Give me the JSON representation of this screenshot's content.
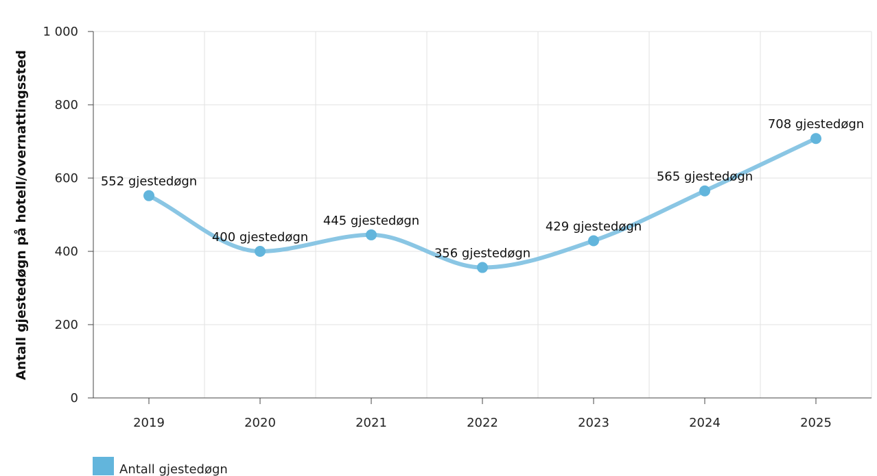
{
  "chart_data": {
    "type": "line",
    "title": "",
    "xlabel": "",
    "ylabel": "Antall gjestedøgn på hotell/overnattingssted",
    "categories": [
      "2019",
      "2020",
      "2021",
      "2022",
      "2023",
      "2024",
      "2025"
    ],
    "series": [
      {
        "name": "Antall gjestedøgn",
        "values": [
          552,
          400,
          445,
          356,
          429,
          565,
          708
        ],
        "labels": [
          "552 gjestedøgn",
          "400 gjestedøgn",
          "445 gjestedøgn",
          "356 gjestedøgn",
          "429 gjestedøgn",
          "565 gjestedøgn",
          "708 gjestedøgn"
        ],
        "color": "#62b5dc",
        "line_color": "#8ac6e4",
        "smooth": true
      }
    ],
    "ylim": [
      0,
      1000
    ],
    "yticks": [
      0,
      200,
      400,
      600,
      800,
      1000
    ],
    "ytick_labels": [
      "0",
      "200",
      "400",
      "600",
      "800",
      "1 000"
    ],
    "grid": true,
    "legend_position": "bottom-left"
  }
}
